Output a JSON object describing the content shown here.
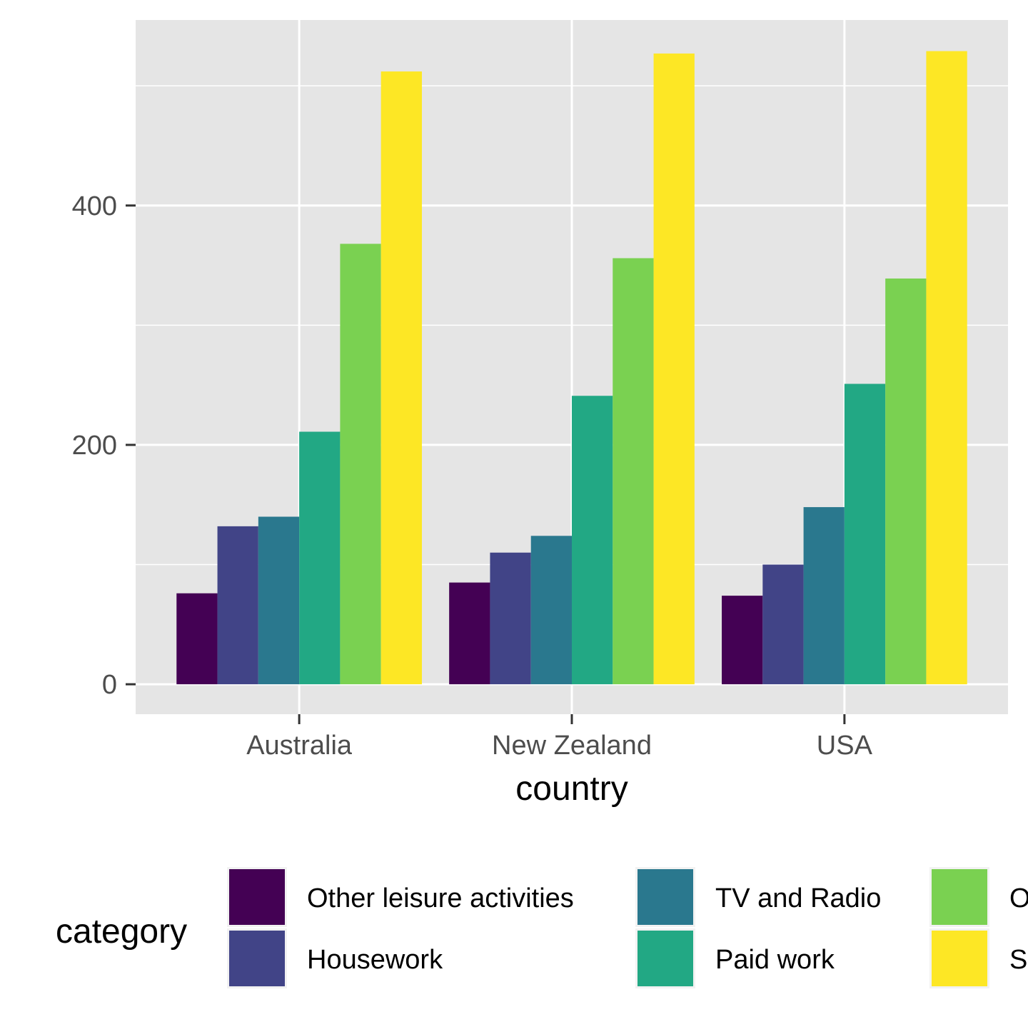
{
  "chart_data": {
    "type": "bar",
    "xlabel": "country",
    "ylabel": "",
    "categories": [
      "Australia",
      "New Zealand",
      "USA"
    ],
    "ylim": [
      -25,
      555
    ],
    "yticks": [
      0,
      200,
      400
    ],
    "y_gridlines_minor": [
      100,
      300,
      500
    ],
    "grid": true,
    "legend_title": "category",
    "legend_position": "bottom",
    "series": [
      {
        "name": "Other leisure activities",
        "color": "#440154",
        "values": [
          76,
          85,
          74
        ]
      },
      {
        "name": "Housework",
        "color": "#414487",
        "values": [
          132,
          110,
          100
        ]
      },
      {
        "name": "TV and Radio",
        "color": "#2A788E",
        "values": [
          140,
          124,
          148
        ]
      },
      {
        "name": "Paid work",
        "color": "#22A884",
        "values": [
          211,
          241,
          251
        ]
      },
      {
        "name": "Other",
        "color": "#7AD151",
        "values": [
          368,
          356,
          339
        ]
      },
      {
        "name": "Sleep",
        "color": "#FDE725",
        "values": [
          512,
          527,
          529
        ]
      }
    ]
  }
}
